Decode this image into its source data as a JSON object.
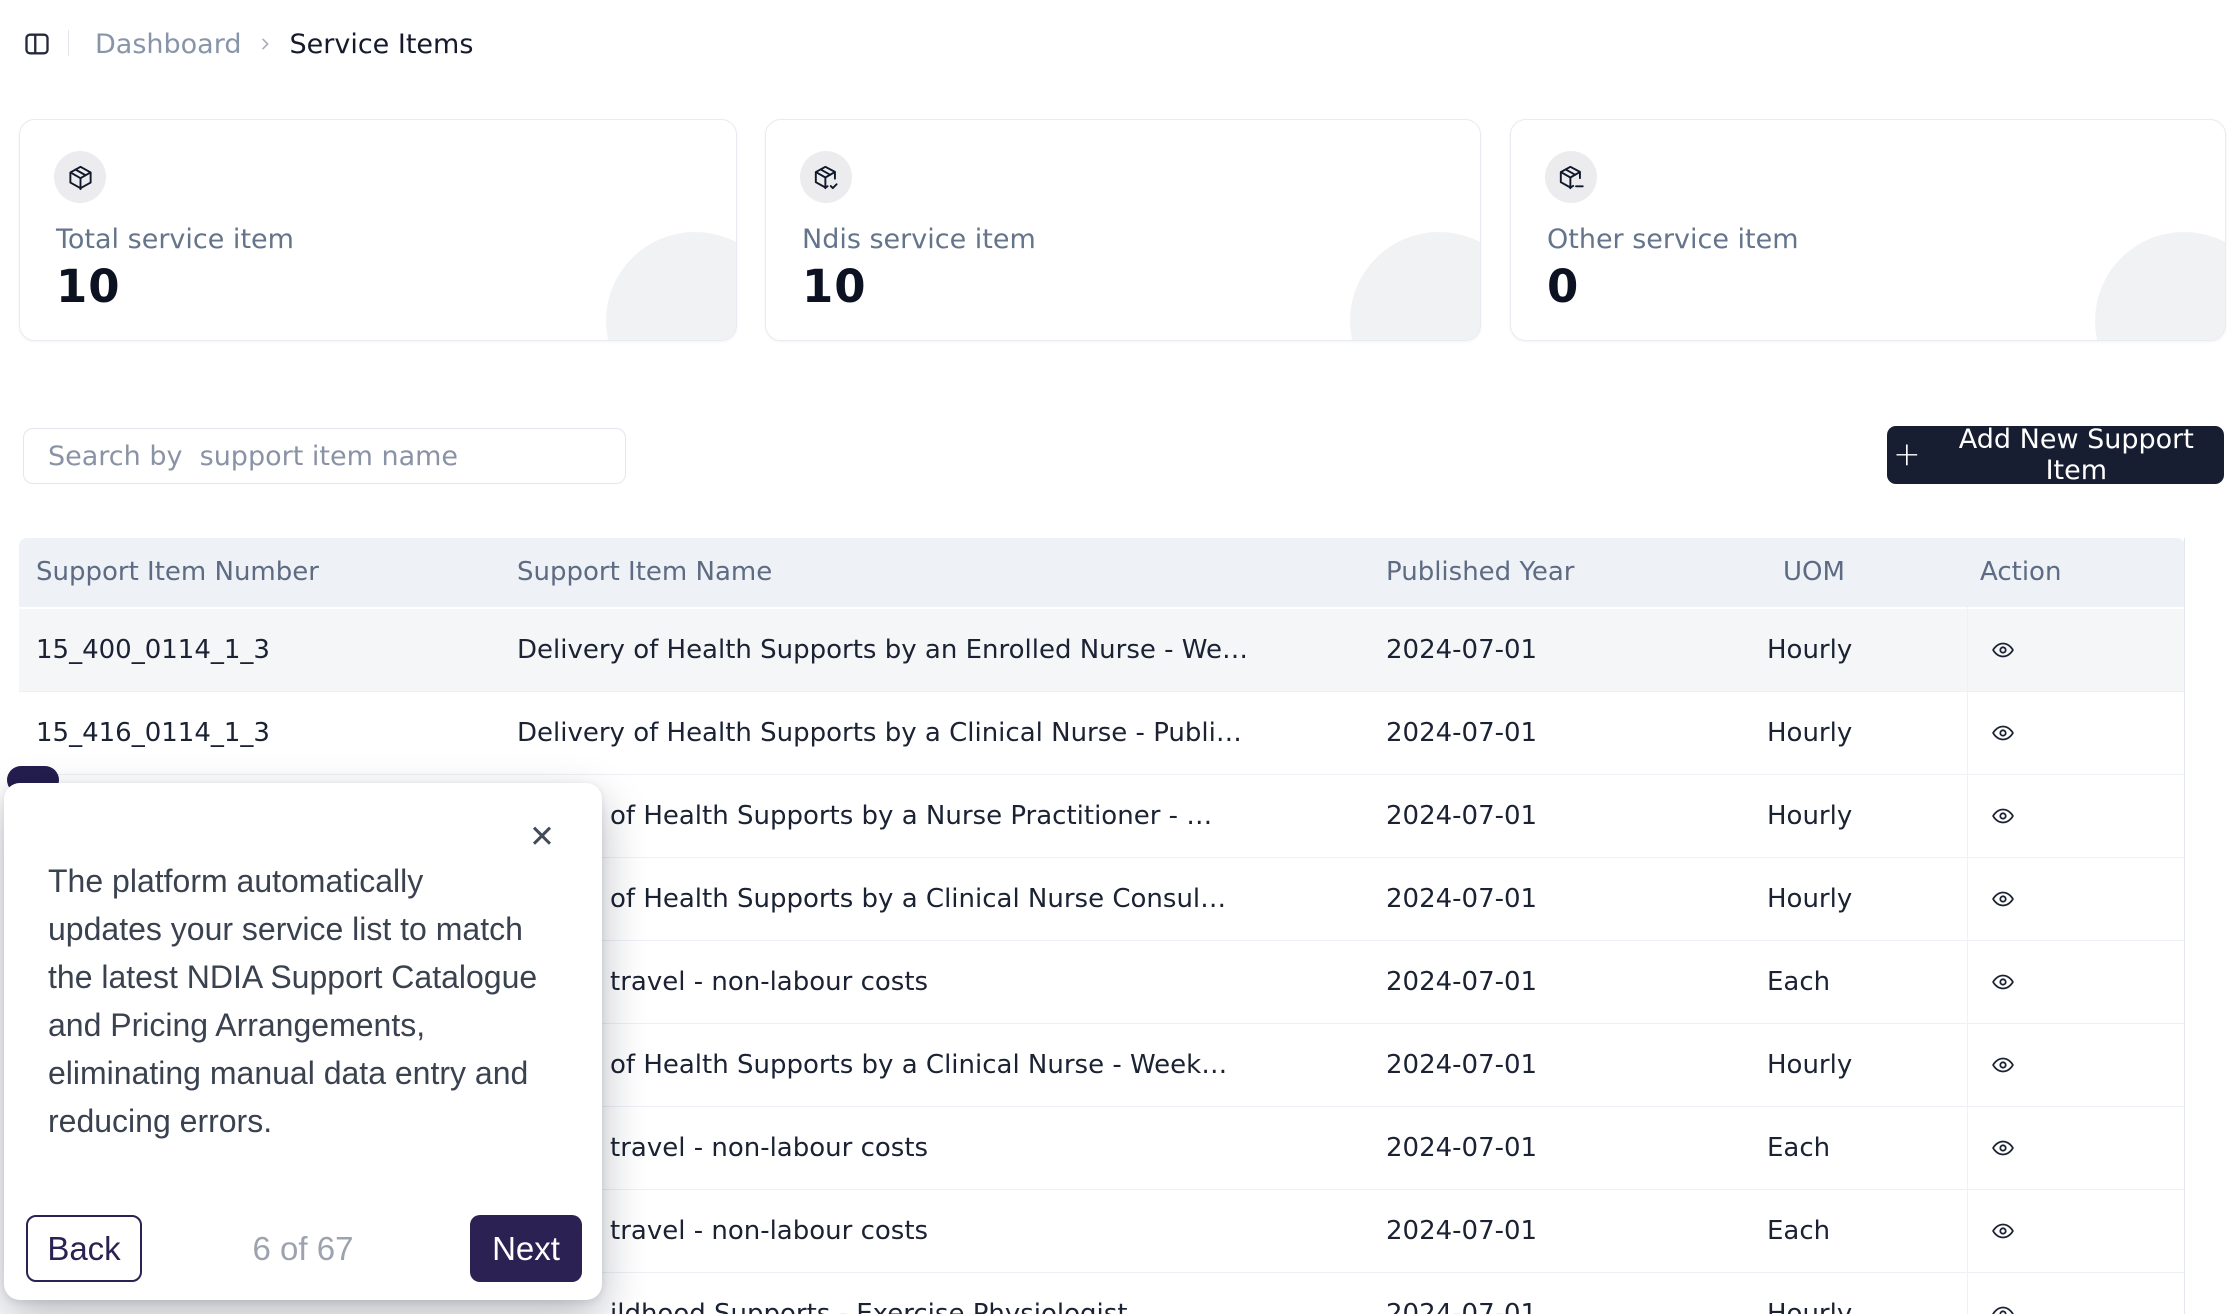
{
  "breadcrumb": {
    "separator": "chevron-right",
    "items": [
      {
        "label": "Dashboard"
      },
      {
        "label": "Service Items"
      }
    ]
  },
  "stats": [
    {
      "icon": "package-icon",
      "label": "Total service item",
      "value": "10"
    },
    {
      "icon": "package-check-icon",
      "label": "Ndis service item",
      "value": "10"
    },
    {
      "icon": "package-minus-icon",
      "label": "Other service item",
      "value": "0"
    }
  ],
  "toolbar": {
    "search_placeholder": "Search by  support item name",
    "add_button": {
      "icon": "plus-icon",
      "plus": "+",
      "label": "Add New Support Item"
    }
  },
  "table": {
    "columns": [
      "Support Item Number",
      "Support Item Name",
      "Published Year",
      "UOM",
      "Action"
    ],
    "action_icon": "eye-icon",
    "rows": [
      {
        "number": "15_400_0114_1_3",
        "name": "Delivery of Health Supports by an Enrolled Nurse - We…",
        "year": "2024-07-01",
        "uom": "Hourly",
        "name_partial": false
      },
      {
        "number": "15_416_0114_1_3",
        "name": "Delivery of Health Supports by a Clinical Nurse - Publi…",
        "year": "2024-07-01",
        "uom": "Hourly",
        "name_partial": false
      },
      {
        "number": "",
        "name": "of Health Supports by a Nurse Practitioner - …",
        "year": "2024-07-01",
        "uom": "Hourly",
        "name_partial": true
      },
      {
        "number": "",
        "name": "of Health Supports by a Clinical Nurse Consul…",
        "year": "2024-07-01",
        "uom": "Hourly",
        "name_partial": true
      },
      {
        "number": "",
        "name": "travel - non-labour costs",
        "year": "2024-07-01",
        "uom": "Each",
        "name_partial": true
      },
      {
        "number": "",
        "name": "of Health Supports by a Clinical Nurse - Week…",
        "year": "2024-07-01",
        "uom": "Hourly",
        "name_partial": true
      },
      {
        "number": "",
        "name": "travel - non-labour costs",
        "year": "2024-07-01",
        "uom": "Each",
        "name_partial": true
      },
      {
        "number": "",
        "name": "travel - non-labour costs",
        "year": "2024-07-01",
        "uom": "Each",
        "name_partial": true
      },
      {
        "number": "",
        "name": "ildhood Supports - Exercise Physiologist",
        "year": "2024-07-01",
        "uom": "Hourly",
        "name_partial": true
      }
    ]
  },
  "tour": {
    "close_icon": "✕",
    "lines": [
      "The platform automatically",
      "updates your service list to match",
      "the latest NDIA Support Catalogue",
      "and Pricing Arrangements,",
      "eliminating manual data entry and",
      "reducing errors."
    ],
    "back_label": "Back",
    "progress": "6 of 67",
    "next_label": "Next"
  },
  "colors": {
    "primary_dark": "#171e31",
    "tour_primary": "#2b2153",
    "tour_pill": "#241d4f",
    "header_bg": "#eef1f6",
    "row_stripe": "#f5f6f8",
    "text_dark": "#1a2233",
    "text_muted": "#64748b"
  }
}
